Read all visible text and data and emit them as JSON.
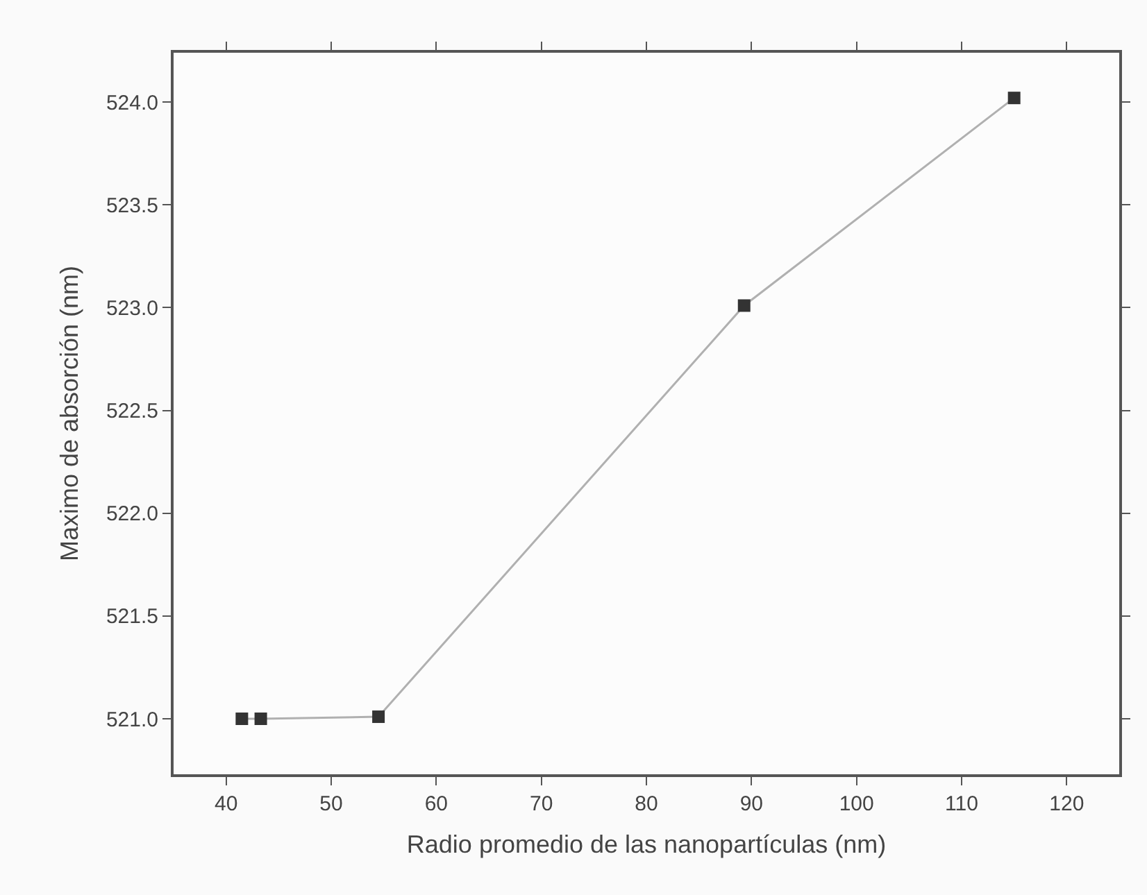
{
  "chart_data": {
    "type": "line",
    "xlabel": "Radio promedio de las nanopartículas (nm)",
    "ylabel": "Maximo de absorción (nm)",
    "x": [
      41.5,
      43.3,
      54.5,
      89.3,
      115.0
    ],
    "series": [
      {
        "color": "#333333",
        "values": [
          521.0,
          521.0,
          521.01,
          523.01,
          524.02
        ]
      }
    ],
    "marker": "square",
    "line_style": "solid",
    "xlim": [
      35,
      125
    ],
    "xticks": [
      40,
      50,
      60,
      70,
      80,
      90,
      100,
      110,
      120
    ],
    "ylim": [
      520.73,
      524.24
    ],
    "yticks": [
      {
        "value": 521.0,
        "label": "521.0"
      },
      {
        "value": 521.5,
        "label": "521.5"
      },
      {
        "value": 522.0,
        "label": "522.0"
      },
      {
        "value": 522.5,
        "label": "522.5"
      },
      {
        "value": 523.0,
        "label": "523.0"
      },
      {
        "value": 523.5,
        "label": "523.5"
      },
      {
        "value": 524.0,
        "label": "524.0"
      }
    ]
  }
}
